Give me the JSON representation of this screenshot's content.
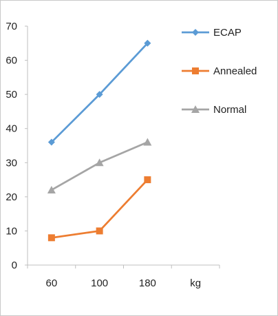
{
  "chart_data": {
    "type": "line",
    "x_tick_labels": [
      "60",
      "100",
      "180",
      "kg"
    ],
    "categories": [
      "60",
      "100",
      "180"
    ],
    "ylim": [
      0,
      70
    ],
    "yticks": [
      0,
      10,
      20,
      30,
      40,
      50,
      60,
      70
    ],
    "y_tick_labels": [
      "0",
      "10",
      "20",
      "30",
      "40",
      "50",
      "60",
      "70"
    ],
    "grid": false,
    "legend_position": "top-right",
    "series": [
      {
        "name": "ECAP",
        "values": [
          36,
          50,
          65
        ],
        "color": "#5b9bd5",
        "marker": "diamond"
      },
      {
        "name": "Annealed",
        "values": [
          8,
          10,
          25
        ],
        "color": "#ed7d31",
        "marker": "square"
      },
      {
        "name": "Normal",
        "values": [
          22,
          30,
          36
        ],
        "color": "#a5a5a5",
        "marker": "triangle"
      }
    ]
  }
}
